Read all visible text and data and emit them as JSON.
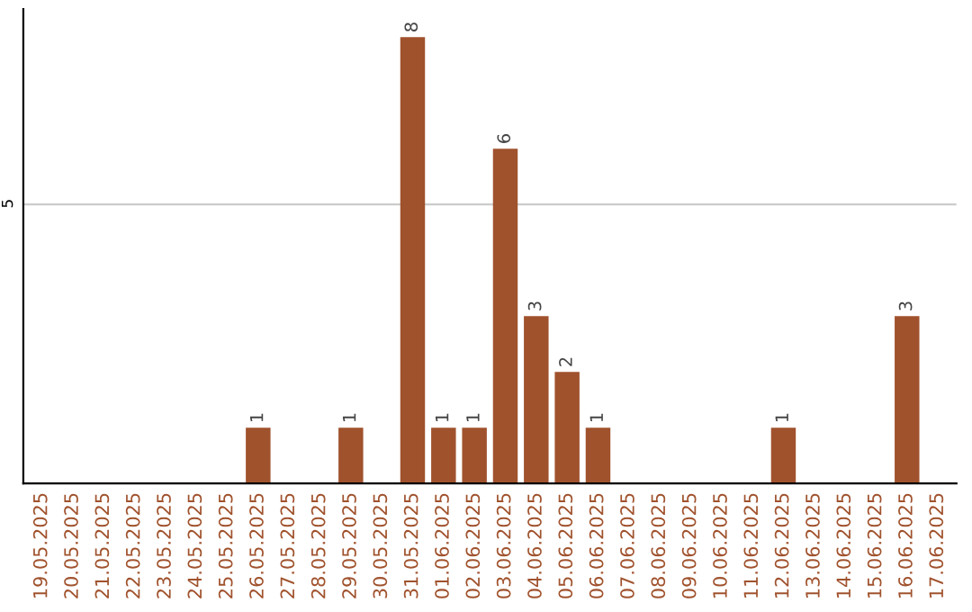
{
  "chart_data": {
    "type": "bar",
    "categories": [
      "19.05.2025",
      "20.05.2025",
      "21.05.2025",
      "22.05.2025",
      "23.05.2025",
      "24.05.2025",
      "25.05.2025",
      "26.05.2025",
      "27.05.2025",
      "28.05.2025",
      "29.05.2025",
      "30.05.2025",
      "31.05.2025",
      "01.06.2025",
      "02.06.2025",
      "03.06.2025",
      "04.06.2025",
      "05.06.2025",
      "06.06.2025",
      "07.06.2025",
      "08.06.2025",
      "09.06.2025",
      "10.06.2025",
      "11.06.2025",
      "12.06.2025",
      "13.06.2025",
      "14.06.2025",
      "15.06.2025",
      "16.06.2025",
      "17.06.2025"
    ],
    "values": [
      0,
      0,
      0,
      0,
      0,
      0,
      0,
      1,
      0,
      0,
      1,
      0,
      8,
      1,
      1,
      6,
      3,
      2,
      1,
      0,
      0,
      0,
      0,
      0,
      1,
      0,
      0,
      0,
      3,
      0
    ],
    "color": "#a0522d",
    "value_labels": [
      null,
      null,
      null,
      null,
      null,
      null,
      null,
      "1",
      null,
      null,
      "1",
      null,
      "8",
      "1",
      "1",
      "6",
      "3",
      "2",
      "1",
      null,
      null,
      null,
      null,
      null,
      "1",
      null,
      null,
      null,
      "3",
      null
    ],
    "ylim": [
      0,
      8.5
    ],
    "yticks": [
      5
    ],
    "grid": "y"
  }
}
